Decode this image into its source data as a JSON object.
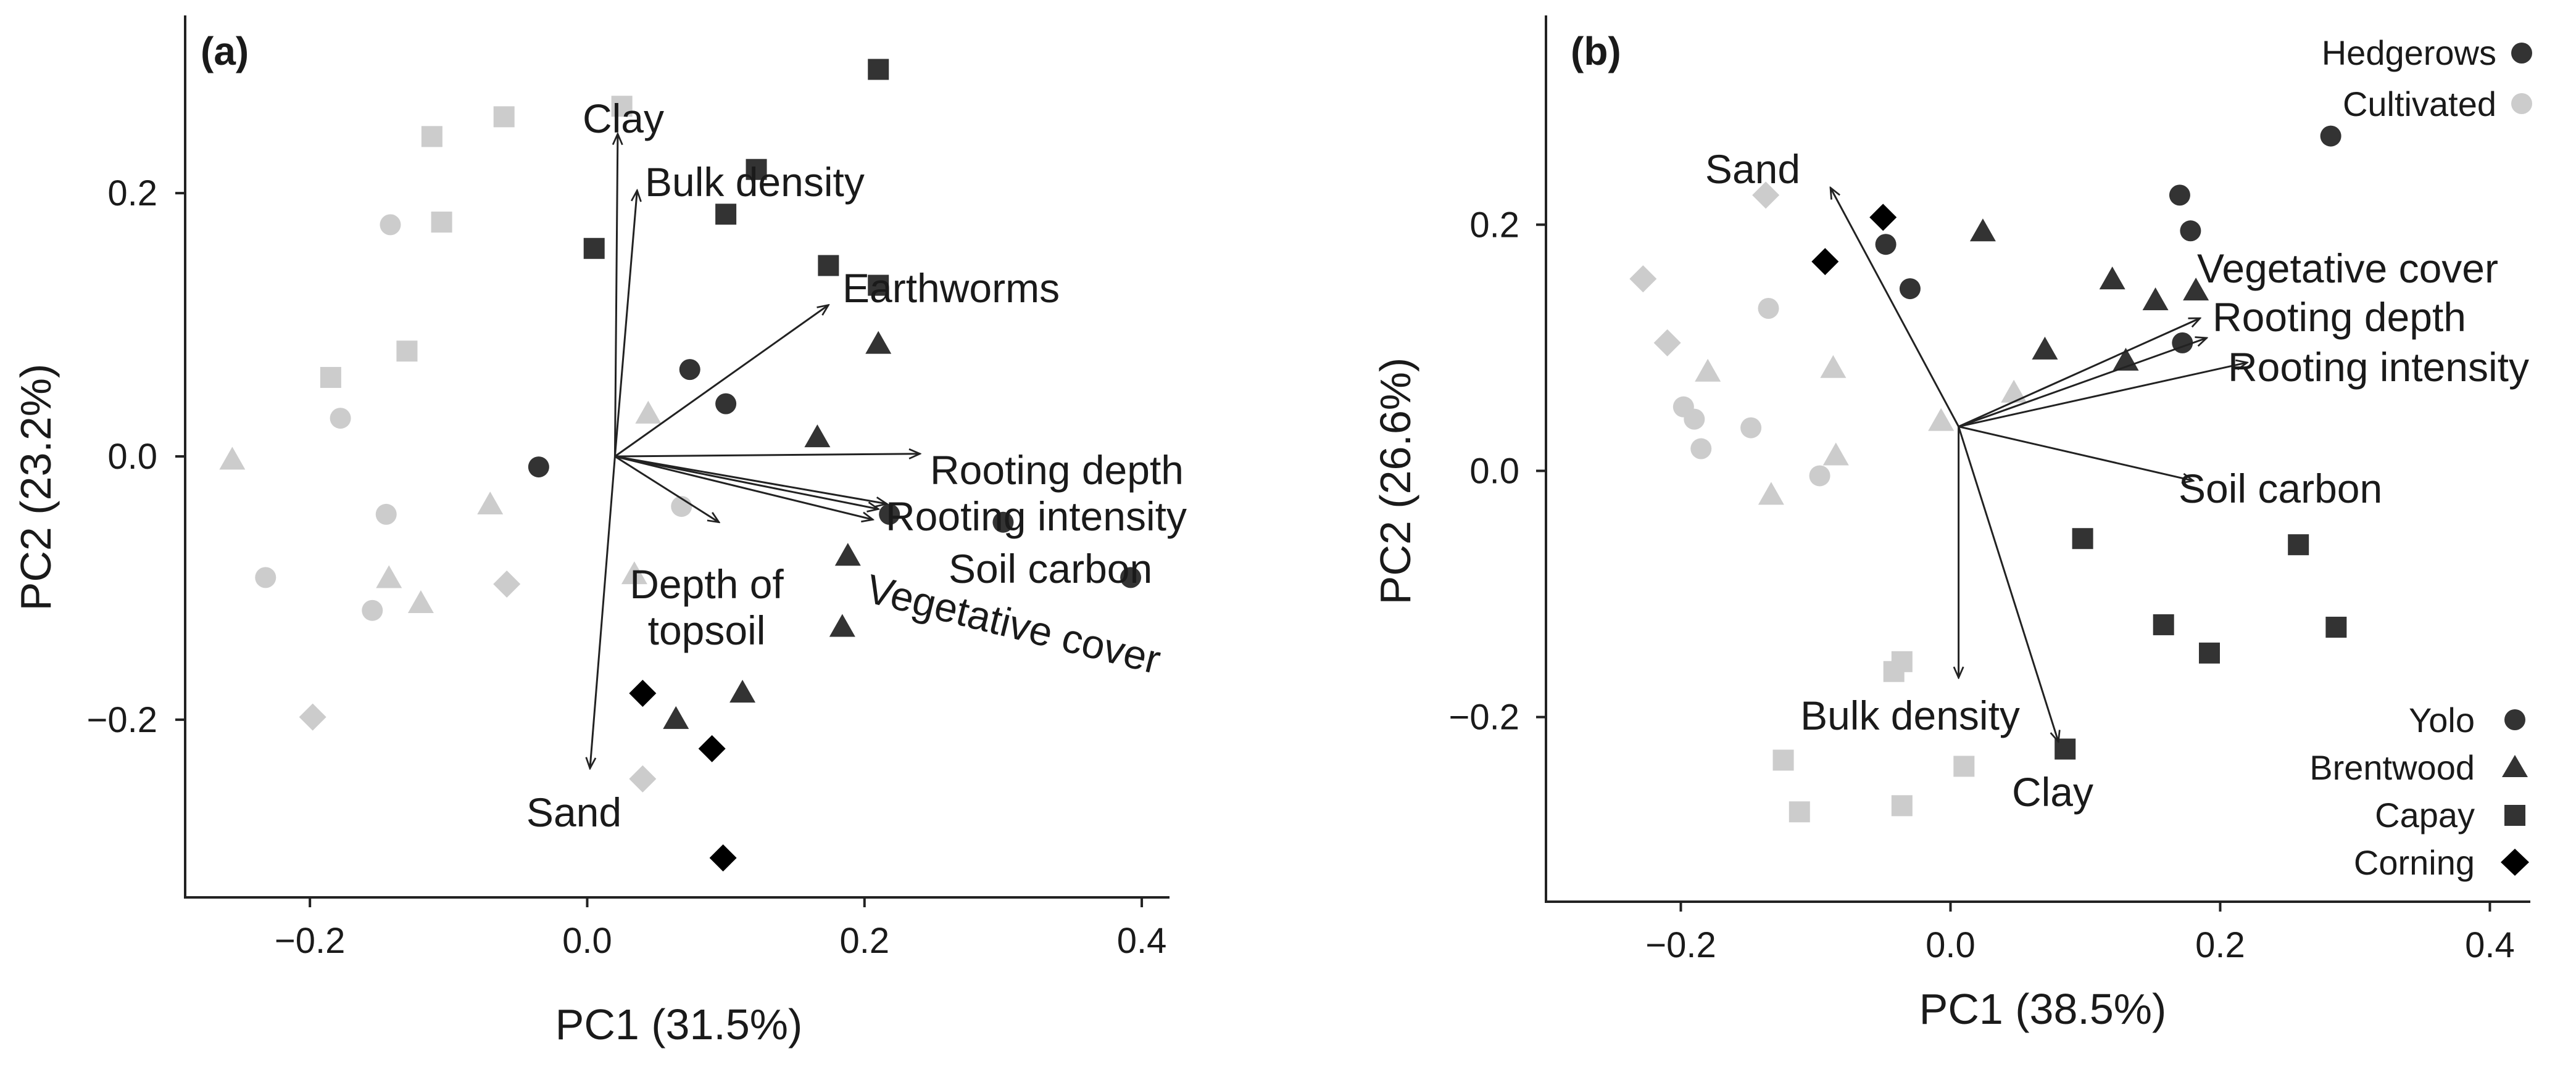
{
  "colors": {
    "hedgerows": "#333333",
    "cultivated": "#cccccc",
    "corning": "#000000",
    "axis": "#222222"
  },
  "legend": {
    "land_use": [
      {
        "label": "Hedgerows",
        "group": "H",
        "shape": "circle"
      },
      {
        "label": "Cultivated",
        "group": "C",
        "shape": "circle"
      }
    ],
    "sites": [
      {
        "label": "Yolo",
        "shape": "circle"
      },
      {
        "label": "Brentwood",
        "shape": "triangle"
      },
      {
        "label": "Capay",
        "shape": "square"
      },
      {
        "label": "Corning",
        "shape": "diamond"
      }
    ]
  },
  "chart_data": [
    {
      "type": "scatter",
      "panel": "(a)",
      "xlabel": "PC1 (31.5%)",
      "ylabel": "PC2 (23.2%)",
      "xlim": [
        -0.29,
        0.42
      ],
      "ylim": [
        -0.335,
        0.335
      ],
      "xticks": [
        -0.2,
        0.0,
        0.2,
        0.4
      ],
      "xtick_labels": [
        "−0.2",
        "0.0",
        "0.2",
        "0.4"
      ],
      "yticks": [
        -0.2,
        0.0,
        0.2
      ],
      "ytick_labels": [
        "−0.2",
        "0.0",
        "0.2"
      ],
      "origin": [
        0.02,
        0.0
      ],
      "vectors": [
        {
          "name": "Clay",
          "tip": [
            0.022,
            0.245
          ]
        },
        {
          "name": "Bulk density",
          "tip": [
            0.036,
            0.202
          ]
        },
        {
          "name": "Earthworms",
          "tip": [
            0.174,
            0.115
          ]
        },
        {
          "name": "Rooting depth",
          "tip": [
            0.24,
            0.002
          ]
        },
        {
          "name": "Rooting intensity",
          "tip": [
            0.21,
            -0.04
          ]
        },
        {
          "name": "Soil carbon",
          "tip": [
            0.206,
            -0.048
          ]
        },
        {
          "name": "Vegetative cover",
          "tip": [
            0.216,
            -0.036
          ]
        },
        {
          "name": "Depth of topsoil",
          "tip": [
            0.095,
            -0.05
          ]
        },
        {
          "name": "Sand",
          "tip": [
            0.002,
            -0.237
          ]
        }
      ],
      "vector_label_lines": [
        [
          "Clay"
        ],
        [
          "Bulk density"
        ],
        [
          "Earthworms"
        ],
        [
          "Rooting depth"
        ],
        [
          "Rooting intensity"
        ],
        [
          "Soil carbon"
        ],
        [
          "Vegetative cover"
        ],
        [
          "Depth of",
          "topsoil"
        ],
        [
          "Sand"
        ]
      ],
      "points": [
        {
          "x": 0.005,
          "y": 0.158,
          "shape": "square",
          "group": "H"
        },
        {
          "x": 0.1,
          "y": 0.184,
          "shape": "square",
          "group": "H"
        },
        {
          "x": 0.122,
          "y": 0.218,
          "shape": "square",
          "group": "H"
        },
        {
          "x": 0.21,
          "y": 0.294,
          "shape": "square",
          "group": "H"
        },
        {
          "x": 0.174,
          "y": 0.145,
          "shape": "square",
          "group": "H"
        },
        {
          "x": 0.21,
          "y": 0.13,
          "shape": "square",
          "group": "H"
        },
        {
          "x": 0.074,
          "y": 0.066,
          "shape": "circle",
          "group": "H"
        },
        {
          "x": 0.1,
          "y": 0.04,
          "shape": "circle",
          "group": "H"
        },
        {
          "x": -0.035,
          "y": -0.008,
          "shape": "circle",
          "group": "H"
        },
        {
          "x": 0.218,
          "y": -0.044,
          "shape": "circle",
          "group": "H"
        },
        {
          "x": 0.3,
          "y": -0.05,
          "shape": "circle",
          "group": "H"
        },
        {
          "x": 0.392,
          "y": -0.092,
          "shape": "circle",
          "group": "H"
        },
        {
          "x": 0.21,
          "y": 0.085,
          "shape": "triangle",
          "group": "H"
        },
        {
          "x": 0.166,
          "y": 0.014,
          "shape": "triangle",
          "group": "H"
        },
        {
          "x": 0.188,
          "y": -0.076,
          "shape": "triangle",
          "group": "H"
        },
        {
          "x": 0.184,
          "y": -0.13,
          "shape": "triangle",
          "group": "H"
        },
        {
          "x": 0.112,
          "y": -0.18,
          "shape": "triangle",
          "group": "H"
        },
        {
          "x": 0.064,
          "y": -0.2,
          "shape": "triangle",
          "group": "H"
        },
        {
          "x": 0.04,
          "y": -0.18,
          "shape": "diamond",
          "group": "corning"
        },
        {
          "x": 0.09,
          "y": -0.222,
          "shape": "diamond",
          "group": "corning"
        },
        {
          "x": 0.098,
          "y": -0.305,
          "shape": "diamond",
          "group": "corning"
        },
        {
          "x": -0.06,
          "y": 0.258,
          "shape": "square",
          "group": "C"
        },
        {
          "x": 0.025,
          "y": 0.266,
          "shape": "square",
          "group": "C"
        },
        {
          "x": -0.112,
          "y": 0.243,
          "shape": "square",
          "group": "C"
        },
        {
          "x": -0.105,
          "y": 0.178,
          "shape": "square",
          "group": "C"
        },
        {
          "x": -0.13,
          "y": 0.08,
          "shape": "square",
          "group": "C"
        },
        {
          "x": -0.185,
          "y": 0.06,
          "shape": "square",
          "group": "C"
        },
        {
          "x": -0.142,
          "y": 0.176,
          "shape": "circle",
          "group": "C"
        },
        {
          "x": -0.178,
          "y": 0.029,
          "shape": "circle",
          "group": "C"
        },
        {
          "x": -0.145,
          "y": -0.044,
          "shape": "circle",
          "group": "C"
        },
        {
          "x": -0.232,
          "y": -0.092,
          "shape": "circle",
          "group": "C"
        },
        {
          "x": -0.155,
          "y": -0.117,
          "shape": "circle",
          "group": "C"
        },
        {
          "x": 0.068,
          "y": -0.038,
          "shape": "circle",
          "group": "C"
        },
        {
          "x": 0.044,
          "y": 0.032,
          "shape": "triangle",
          "group": "C"
        },
        {
          "x": -0.256,
          "y": -0.003,
          "shape": "triangle",
          "group": "C"
        },
        {
          "x": -0.07,
          "y": -0.037,
          "shape": "triangle",
          "group": "C"
        },
        {
          "x": -0.143,
          "y": -0.093,
          "shape": "triangle",
          "group": "C"
        },
        {
          "x": -0.12,
          "y": -0.112,
          "shape": "triangle",
          "group": "C"
        },
        {
          "x": 0.034,
          "y": -0.09,
          "shape": "triangle",
          "group": "C"
        },
        {
          "x": -0.058,
          "y": -0.097,
          "shape": "diamond",
          "group": "C"
        },
        {
          "x": -0.198,
          "y": -0.198,
          "shape": "diamond",
          "group": "C"
        },
        {
          "x": 0.04,
          "y": -0.245,
          "shape": "diamond",
          "group": "C"
        }
      ]
    },
    {
      "type": "scatter",
      "panel": "(b)",
      "xlabel": "PC1 (38.5%)",
      "ylabel": "PC2 (26.6%)",
      "xlim": [
        -0.3,
        0.43
      ],
      "ylim": [
        -0.35,
        0.37
      ],
      "xticks": [
        -0.2,
        0.0,
        0.2,
        0.4
      ],
      "xtick_labels": [
        "−0.2",
        "0.0",
        "0.2",
        "0.4"
      ],
      "yticks": [
        -0.2,
        0.0,
        0.2
      ],
      "ytick_labels": [
        "−0.2",
        "0.0",
        "0.2"
      ],
      "origin": [
        0.006,
        0.036
      ],
      "vectors": [
        {
          "name": "Sand",
          "tip": [
            -0.089,
            0.23
          ]
        },
        {
          "name": "Vegetative cover",
          "tip": [
            0.185,
            0.124
          ]
        },
        {
          "name": "Rooting depth",
          "tip": [
            0.19,
            0.108
          ]
        },
        {
          "name": "Rooting intensity",
          "tip": [
            0.22,
            0.088
          ]
        },
        {
          "name": "Soil carbon",
          "tip": [
            0.18,
            -0.008
          ]
        },
        {
          "name": "Bulk density",
          "tip": [
            0.006,
            -0.168
          ]
        },
        {
          "name": "Clay",
          "tip": [
            0.08,
            -0.22
          ]
        }
      ],
      "vector_label_lines": [
        [
          "Sand"
        ],
        [
          "Vegetative cover"
        ],
        [
          "Rooting depth"
        ],
        [
          "Rooting intensity"
        ],
        [
          "Soil carbon"
        ],
        [
          "Bulk density"
        ],
        [
          "Clay"
        ]
      ],
      "points": [
        {
          "x": 0.282,
          "y": 0.272,
          "shape": "circle",
          "group": "H"
        },
        {
          "x": 0.17,
          "y": 0.224,
          "shape": "circle",
          "group": "H"
        },
        {
          "x": 0.178,
          "y": 0.195,
          "shape": "circle",
          "group": "H"
        },
        {
          "x": 0.172,
          "y": 0.104,
          "shape": "circle",
          "group": "H"
        },
        {
          "x": -0.048,
          "y": 0.184,
          "shape": "circle",
          "group": "H"
        },
        {
          "x": -0.03,
          "y": 0.148,
          "shape": "circle",
          "group": "H"
        },
        {
          "x": 0.024,
          "y": 0.194,
          "shape": "triangle",
          "group": "H"
        },
        {
          "x": 0.12,
          "y": 0.155,
          "shape": "triangle",
          "group": "H"
        },
        {
          "x": 0.152,
          "y": 0.138,
          "shape": "triangle",
          "group": "H"
        },
        {
          "x": 0.182,
          "y": 0.146,
          "shape": "triangle",
          "group": "H"
        },
        {
          "x": 0.07,
          "y": 0.098,
          "shape": "triangle",
          "group": "H"
        },
        {
          "x": 0.13,
          "y": 0.089,
          "shape": "triangle",
          "group": "H"
        },
        {
          "x": 0.098,
          "y": -0.055,
          "shape": "square",
          "group": "H"
        },
        {
          "x": 0.258,
          "y": -0.06,
          "shape": "square",
          "group": "H"
        },
        {
          "x": 0.158,
          "y": -0.125,
          "shape": "square",
          "group": "H"
        },
        {
          "x": 0.192,
          "y": -0.148,
          "shape": "square",
          "group": "H"
        },
        {
          "x": 0.286,
          "y": -0.127,
          "shape": "square",
          "group": "H"
        },
        {
          "x": 0.085,
          "y": -0.226,
          "shape": "square",
          "group": "H"
        },
        {
          "x": -0.05,
          "y": 0.206,
          "shape": "diamond",
          "group": "corning"
        },
        {
          "x": -0.093,
          "y": 0.17,
          "shape": "diamond",
          "group": "corning"
        },
        {
          "x": -0.135,
          "y": 0.132,
          "shape": "circle",
          "group": "C"
        },
        {
          "x": -0.198,
          "y": 0.052,
          "shape": "circle",
          "group": "C"
        },
        {
          "x": -0.19,
          "y": 0.042,
          "shape": "circle",
          "group": "C"
        },
        {
          "x": -0.185,
          "y": 0.018,
          "shape": "circle",
          "group": "C"
        },
        {
          "x": -0.148,
          "y": 0.035,
          "shape": "circle",
          "group": "C"
        },
        {
          "x": -0.097,
          "y": -0.004,
          "shape": "circle",
          "group": "C"
        },
        {
          "x": -0.18,
          "y": 0.08,
          "shape": "triangle",
          "group": "C"
        },
        {
          "x": -0.087,
          "y": 0.083,
          "shape": "triangle",
          "group": "C"
        },
        {
          "x": -0.085,
          "y": 0.012,
          "shape": "triangle",
          "group": "C"
        },
        {
          "x": -0.133,
          "y": -0.02,
          "shape": "triangle",
          "group": "C"
        },
        {
          "x": 0.047,
          "y": 0.063,
          "shape": "triangle",
          "group": "C"
        },
        {
          "x": -0.007,
          "y": 0.04,
          "shape": "triangle",
          "group": "C"
        },
        {
          "x": -0.228,
          "y": 0.156,
          "shape": "diamond",
          "group": "C"
        },
        {
          "x": -0.21,
          "y": 0.104,
          "shape": "diamond",
          "group": "C"
        },
        {
          "x": -0.137,
          "y": 0.224,
          "shape": "diamond",
          "group": "C"
        },
        {
          "x": -0.042,
          "y": -0.163,
          "shape": "square",
          "group": "C"
        },
        {
          "x": -0.036,
          "y": -0.155,
          "shape": "square",
          "group": "C"
        },
        {
          "x": -0.124,
          "y": -0.235,
          "shape": "square",
          "group": "C"
        },
        {
          "x": 0.01,
          "y": -0.24,
          "shape": "square",
          "group": "C"
        },
        {
          "x": -0.112,
          "y": -0.277,
          "shape": "square",
          "group": "C"
        },
        {
          "x": -0.036,
          "y": -0.272,
          "shape": "square",
          "group": "C"
        }
      ]
    }
  ]
}
